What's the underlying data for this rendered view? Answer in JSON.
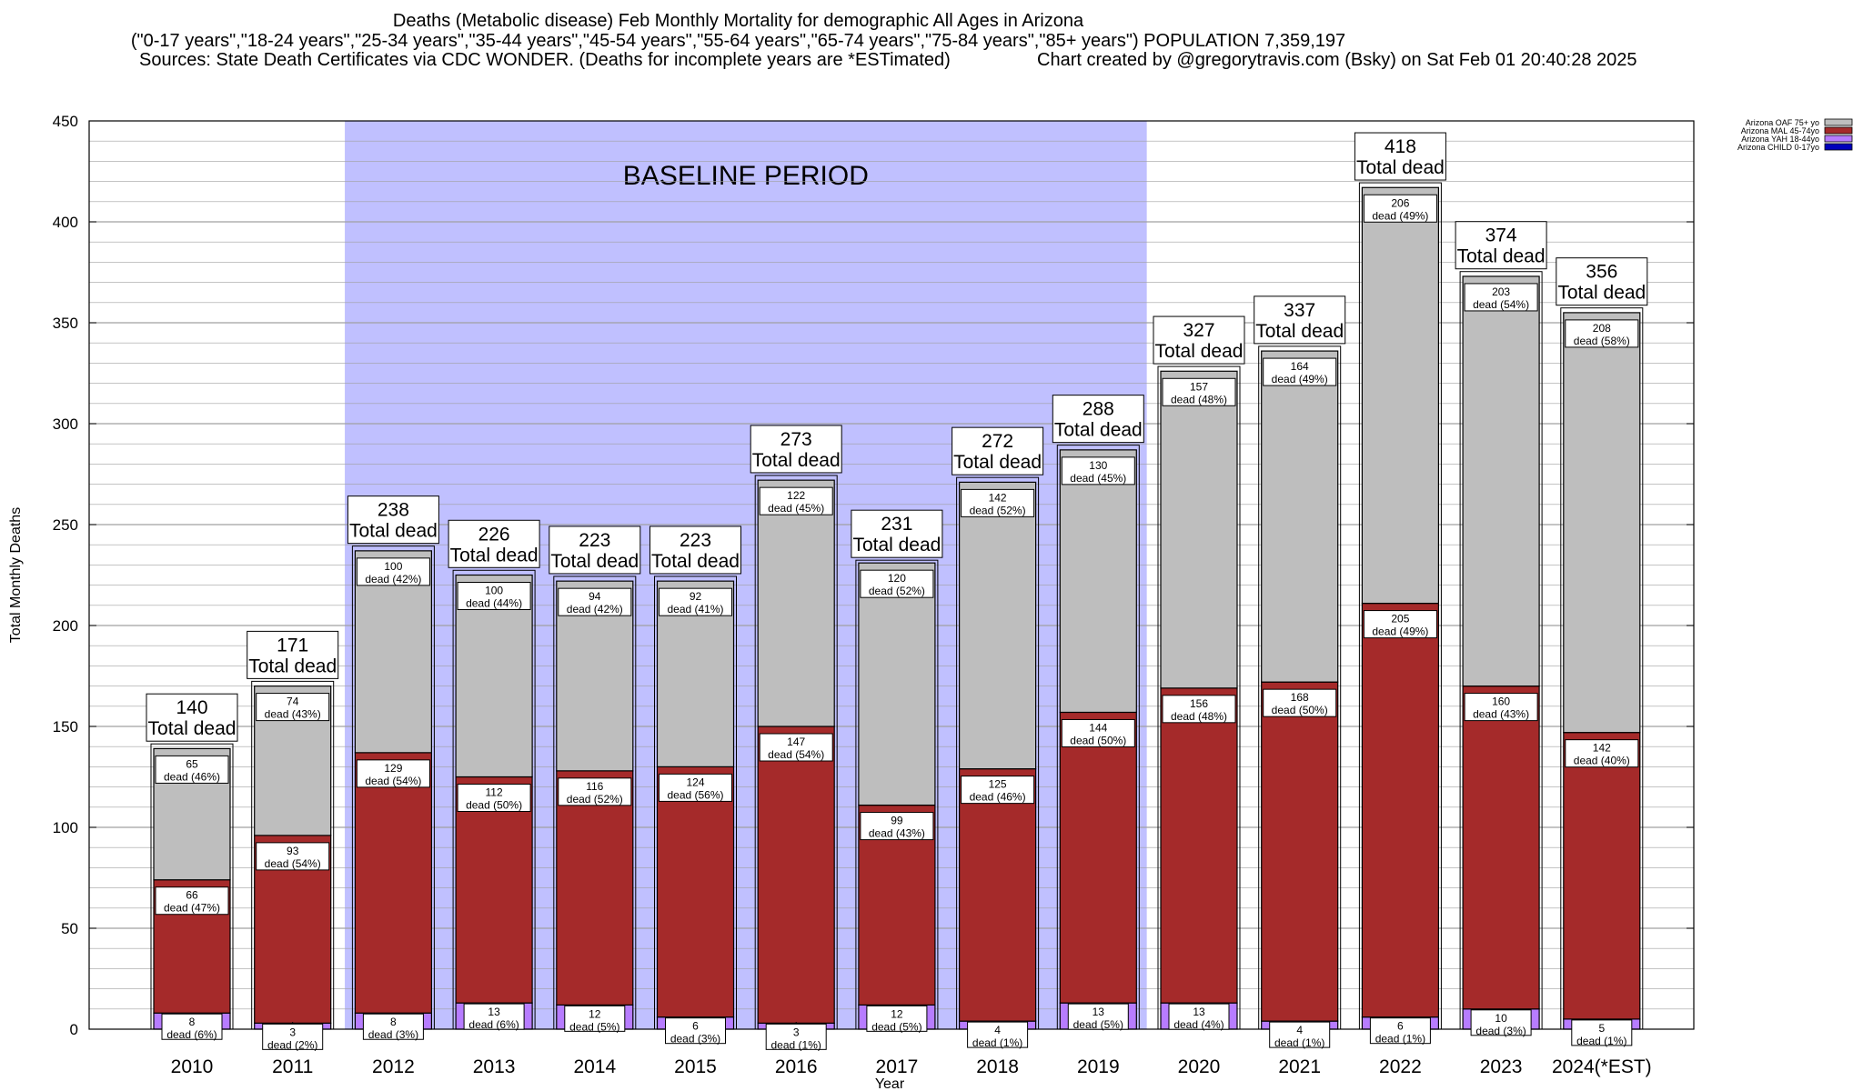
{
  "header": {
    "title": "Deaths (Metabolic disease) Feb Monthly Mortality for demographic All Ages in Arizona",
    "subtitle": "(\"0-17 years\",\"18-24 years\",\"25-34 years\",\"35-44 years\",\"45-54 years\",\"55-64 years\",\"65-74 years\",\"75-84 years\",\"85+ years\") POPULATION 7,359,197",
    "sources": "Sources: State Death Certificates via CDC WONDER. (Deaths for incomplete years are *ESTimated)",
    "credit": "Chart created by @gregorytravis.com (Bsky) on Sat Feb 01 20:40:28 2025"
  },
  "chart_data": {
    "type": "bar",
    "stacked": true,
    "ylabel": "Total Monthly Deaths",
    "xlabel": "Year",
    "ylim": [
      0,
      450
    ],
    "yticks": [
      0,
      50,
      100,
      150,
      200,
      250,
      300,
      350,
      400,
      450
    ],
    "grid": true,
    "legend_position": "top-right",
    "annotation": "BASELINE PERIOD",
    "baseline_range": [
      "2012",
      "2019"
    ],
    "total_label": "Total dead",
    "dead_word": "dead",
    "categories": [
      "2010",
      "2011",
      "2012",
      "2013",
      "2014",
      "2015",
      "2016",
      "2017",
      "2018",
      "2019",
      "2020",
      "2021",
      "2022",
      "2023",
      "2024(*EST)"
    ],
    "totals": [
      140,
      171,
      238,
      226,
      223,
      223,
      273,
      231,
      272,
      288,
      327,
      337,
      418,
      374,
      356
    ],
    "series": [
      {
        "name": "Arizona CHILD 0-17yo",
        "color": "#0000bb",
        "values": [
          0,
          0,
          0,
          0,
          0,
          0,
          0,
          0,
          0,
          0,
          0,
          0,
          0,
          0,
          0
        ]
      },
      {
        "name": "Arizona YAH 18-44yo",
        "color": "#b77cff",
        "values": [
          8,
          3,
          8,
          13,
          12,
          6,
          3,
          12,
          4,
          13,
          13,
          4,
          6,
          10,
          5
        ],
        "pct_labels": [
          "(6%)",
          "(2%)",
          "(3%)",
          "(6%)",
          "(5%)",
          "(3%)",
          "(1%)",
          "(5%)",
          "(1%)",
          "(5%)",
          "(4%)",
          "(1%)",
          "(1%)",
          "(3%)",
          "(1%)"
        ]
      },
      {
        "name": "Arizona MAL 45-74yo",
        "color": "#a52a2a",
        "values": [
          66,
          93,
          129,
          112,
          116,
          124,
          147,
          99,
          125,
          144,
          156,
          168,
          205,
          160,
          142
        ],
        "pct_labels": [
          "(47%)",
          "(54%)",
          "(54%)",
          "(50%)",
          "(52%)",
          "(56%)",
          "(54%)",
          "(43%)",
          "(46%)",
          "(50%)",
          "(48%)",
          "(50%)",
          "(49%)",
          "(43%)",
          "(40%)"
        ]
      },
      {
        "name": "Arizona OAF 75+ yo",
        "color": "#bebebe",
        "values": [
          65,
          74,
          100,
          100,
          94,
          92,
          122,
          120,
          142,
          130,
          157,
          164,
          206,
          203,
          208
        ],
        "pct_labels": [
          "(46%)",
          "(43%)",
          "(42%)",
          "(44%)",
          "(42%)",
          "(41%)",
          "(45%)",
          "(52%)",
          "(52%)",
          "(45%)",
          "(48%)",
          "(49%)",
          "(49%)",
          "(54%)",
          "(58%)"
        ]
      }
    ]
  },
  "colors": {
    "baseline_band": "#c0c0ff",
    "grid": "#a0a0a0",
    "box_border": "#000000"
  }
}
